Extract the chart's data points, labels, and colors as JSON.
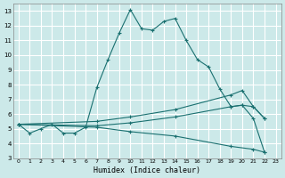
{
  "xlabel": "Humidex (Indice chaleur)",
  "xlim": [
    -0.5,
    23.5
  ],
  "ylim": [
    3,
    13.5
  ],
  "yticks": [
    3,
    4,
    5,
    6,
    7,
    8,
    9,
    10,
    11,
    12,
    13
  ],
  "xticks": [
    0,
    1,
    2,
    3,
    4,
    5,
    6,
    7,
    8,
    9,
    10,
    11,
    12,
    13,
    14,
    15,
    16,
    17,
    18,
    19,
    20,
    21,
    22,
    23
  ],
  "bg_color": "#cce9e9",
  "grid_color": "#ffffff",
  "line_color": "#1a7070",
  "line1": {
    "x": [
      0,
      1,
      2,
      3,
      4,
      5,
      6,
      7,
      8,
      9,
      10,
      11,
      12,
      13,
      14,
      15,
      16,
      17,
      18,
      19,
      20,
      21,
      22
    ],
    "y": [
      5.3,
      4.7,
      5.0,
      5.3,
      4.7,
      4.7,
      5.1,
      7.8,
      9.7,
      11.5,
      13.1,
      11.8,
      11.7,
      12.3,
      12.5,
      11.0,
      9.7,
      9.2,
      7.7,
      6.5,
      6.6,
      5.7,
      3.4
    ]
  },
  "line2": {
    "x": [
      0,
      7,
      10,
      14,
      19,
      20,
      21,
      22
    ],
    "y": [
      5.3,
      5.5,
      5.8,
      6.3,
      7.3,
      7.6,
      6.5,
      5.7
    ]
  },
  "line3": {
    "x": [
      0,
      7,
      10,
      14,
      19,
      20,
      21,
      22
    ],
    "y": [
      5.3,
      5.2,
      5.4,
      5.8,
      6.5,
      6.6,
      6.5,
      5.7
    ]
  },
  "line4": {
    "x": [
      0,
      7,
      10,
      14,
      19,
      21,
      22
    ],
    "y": [
      5.3,
      5.1,
      4.8,
      4.5,
      3.8,
      3.6,
      3.4
    ]
  }
}
